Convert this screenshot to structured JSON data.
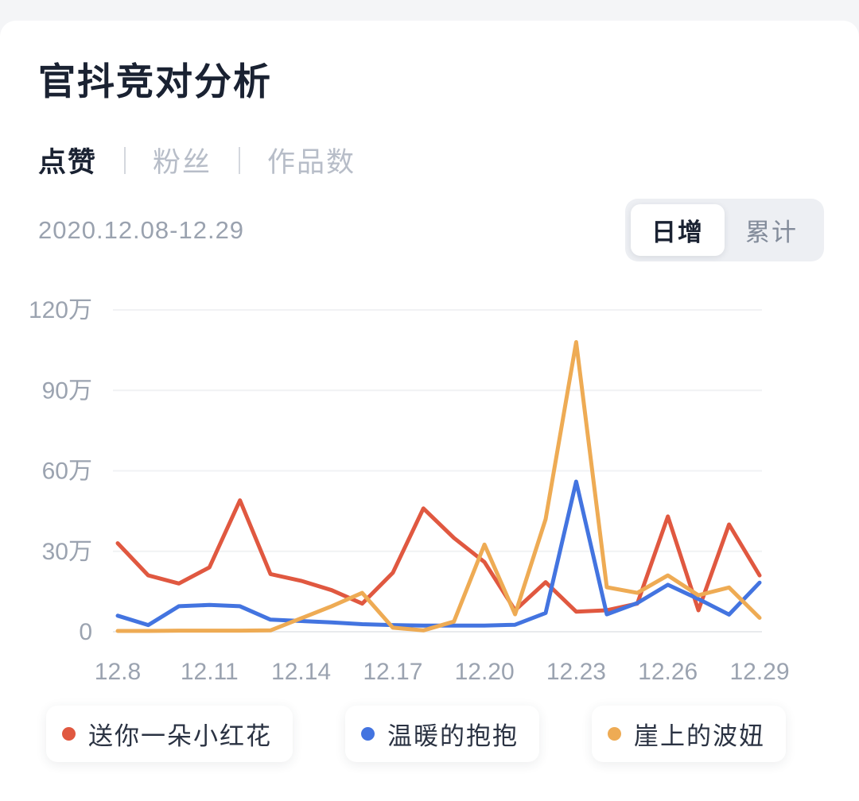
{
  "header": {
    "title": "官抖竞对分析"
  },
  "tabs": [
    {
      "label": "点赞",
      "active": true
    },
    {
      "label": "粉丝",
      "active": false
    },
    {
      "label": "作品数",
      "active": false
    }
  ],
  "date_range": "2020.12.08-12.29",
  "toggle": {
    "options": [
      {
        "label": "日增",
        "active": true
      },
      {
        "label": "累计",
        "active": false
      }
    ]
  },
  "chart_data": {
    "type": "line",
    "title": "官抖竞对分析 - 点赞 日增",
    "unit": "万",
    "x": [
      "12.8",
      "12.9",
      "12.10",
      "12.11",
      "12.12",
      "12.13",
      "12.14",
      "12.15",
      "12.16",
      "12.17",
      "12.18",
      "12.19",
      "12.20",
      "12.21",
      "12.22",
      "12.23",
      "12.24",
      "12.25",
      "12.26",
      "12.27",
      "12.28",
      "12.29"
    ],
    "x_tick_labels": [
      "12.8",
      "12.11",
      "12.14",
      "12.17",
      "12.20",
      "12.23",
      "12.26",
      "12.29"
    ],
    "x_tick_indices": [
      0,
      3,
      6,
      9,
      12,
      15,
      18,
      21
    ],
    "y_ticks": [
      {
        "value": 0,
        "label": "0"
      },
      {
        "value": 30,
        "label": "30万"
      },
      {
        "value": 60,
        "label": "60万"
      },
      {
        "value": 90,
        "label": "90万"
      },
      {
        "value": 120,
        "label": "120万"
      }
    ],
    "ylim": [
      0,
      120
    ],
    "grid": "horizontal",
    "legend_position": "bottom",
    "series": [
      {
        "name": "送你一朵小红花",
        "color": "#e05840",
        "values": [
          33,
          21,
          18,
          24,
          49,
          21.5,
          19,
          15.5,
          10.5,
          22,
          46,
          35,
          26,
          8,
          18.5,
          7.5,
          8,
          10.5,
          43,
          8,
          40,
          21
        ]
      },
      {
        "name": "温暖的抱抱",
        "color": "#4374e0",
        "values": [
          6,
          2.5,
          9.5,
          10,
          9.5,
          4.5,
          4,
          3.5,
          2.8,
          2.5,
          2.3,
          2.3,
          2.3,
          2.6,
          7,
          56,
          6.5,
          10.7,
          17.5,
          12.2,
          6.4,
          18.3
        ]
      },
      {
        "name": "崖上的波妞",
        "color": "#eeab54",
        "values": [
          0.3,
          0.3,
          0.4,
          0.4,
          0.4,
          0.5,
          5,
          9.5,
          14.5,
          1.5,
          0.5,
          3.8,
          32.5,
          6.5,
          42,
          108,
          16.6,
          14.5,
          21,
          13.6,
          16.5,
          5.2
        ]
      }
    ],
    "colors": {
      "grid_line": "#f1f2f4",
      "zero_line": "#e8eaed",
      "axis_text": "#9ba3b0"
    }
  }
}
